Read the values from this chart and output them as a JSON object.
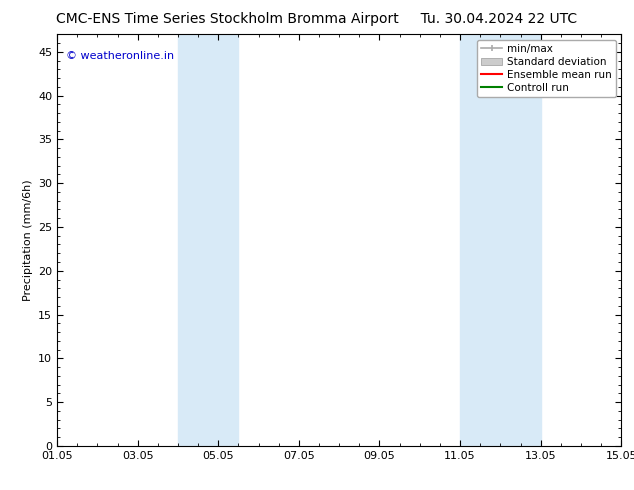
{
  "title_left": "CMC-ENS Time Series Stockholm Bromma Airport",
  "title_right": "Tu. 30.04.2024 22 UTC",
  "ylabel": "Precipitation (mm/6h)",
  "watermark": "© weatheronline.in",
  "watermark_color": "#0000cc",
  "x_start": 1.05,
  "x_end": 15.05,
  "x_ticks": [
    1.05,
    3.05,
    5.05,
    7.05,
    9.05,
    11.05,
    13.05,
    15.05
  ],
  "x_tick_labels": [
    "01.05",
    "03.05",
    "05.05",
    "07.05",
    "09.05",
    "11.05",
    "13.05",
    "15.05"
  ],
  "y_min": 0,
  "y_max": 47,
  "y_ticks": [
    0,
    5,
    10,
    15,
    20,
    25,
    30,
    35,
    40,
    45
  ],
  "shaded_regions": [
    {
      "x_start": 4.05,
      "x_end": 5.55,
      "color": "#d8eaf7"
    },
    {
      "x_start": 11.05,
      "x_end": 13.05,
      "color": "#d8eaf7"
    }
  ],
  "legend_entries": [
    {
      "label": "min/max",
      "color": "#aaaaaa",
      "lw": 1.2,
      "style": "solid"
    },
    {
      "label": "Standard deviation",
      "color": "#cccccc",
      "lw": 5,
      "style": "solid"
    },
    {
      "label": "Ensemble mean run",
      "color": "#ff0000",
      "lw": 1.5,
      "style": "solid"
    },
    {
      "label": "Controll run",
      "color": "#008000",
      "lw": 1.5,
      "style": "solid"
    }
  ],
  "bg_color": "#ffffff",
  "plot_bg_color": "#ffffff",
  "tick_color": "#000000",
  "spine_color": "#000000",
  "title_fontsize": 10,
  "label_fontsize": 8,
  "tick_fontsize": 8,
  "legend_fontsize": 7.5
}
